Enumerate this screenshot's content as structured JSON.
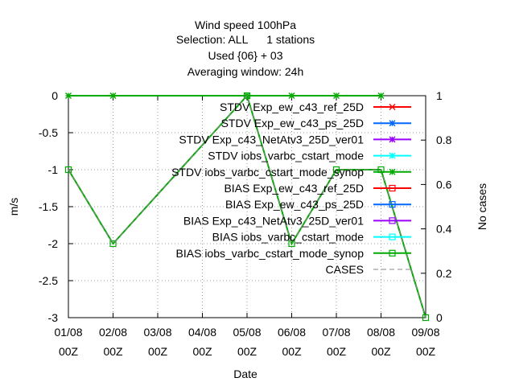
{
  "chart_data": {
    "type": "line",
    "title": [
      "Wind speed 100hPa",
      "Selection: ALL      1 stations",
      "Used {06} + 03",
      "Averaging window: 24h"
    ],
    "xlabel": "Date",
    "ylabel": "m/s",
    "y2label": "No cases",
    "x_ticks": [
      [
        "01/08",
        "00Z"
      ],
      [
        "02/08",
        "00Z"
      ],
      [
        "03/08",
        "00Z"
      ],
      [
        "04/08",
        "00Z"
      ],
      [
        "05/08",
        "00Z"
      ],
      [
        "06/08",
        "00Z"
      ],
      [
        "07/08",
        "00Z"
      ],
      [
        "08/08",
        "00Z"
      ],
      [
        "09/08",
        "00Z"
      ]
    ],
    "y_ticks": [
      "0",
      "-0.5",
      "-1",
      "-1.5",
      "-2",
      "-2.5",
      "-3"
    ],
    "y2_ticks": [
      "1",
      "0.8",
      "0.6",
      "0.4",
      "0.2",
      "0"
    ],
    "ylim": [
      -3,
      0
    ],
    "y2lim": [
      0,
      1
    ],
    "grid": true,
    "legend_position": "top-right",
    "series": [
      {
        "name": "STDV Exp_ew_c43_ref_25D",
        "color": "#ff0000",
        "marker": "x",
        "x": [],
        "y": []
      },
      {
        "name": "STDV Exp_ew_c43_ps_25D",
        "color": "#0066ff",
        "marker": "star",
        "x": [],
        "y": []
      },
      {
        "name": "STDV Exp_c43_NetAtv3_25D_ver01",
        "color": "#9900ff",
        "marker": "star",
        "x": [],
        "y": []
      },
      {
        "name": "STDV iobs_varbc_cstart_mode",
        "color": "#00ffff",
        "marker": "star",
        "x": [],
        "y": []
      },
      {
        "name": "STDV iobs_varbc_cstart_mode_synop",
        "color": "#00aa00",
        "marker": "star",
        "x": [
          0,
          1,
          4,
          5,
          6,
          7
        ],
        "y": [
          0,
          0,
          0,
          0,
          0,
          0
        ]
      },
      {
        "name": "BIAS Exp_ew_c43_ref_25D",
        "color": "#ff0000",
        "marker": "square",
        "x": [],
        "y": []
      },
      {
        "name": "BIAS Exp_ew_c43_ps_25D",
        "color": "#0066ff",
        "marker": "square",
        "x": [],
        "y": []
      },
      {
        "name": "BIAS Exp_c43_NetAtv3_25D_ver01",
        "color": "#9900ff",
        "marker": "square",
        "x": [],
        "y": []
      },
      {
        "name": "BIAS iobs_varbc_cstart_mode",
        "color": "#00ffff",
        "marker": "square",
        "x": [],
        "y": []
      },
      {
        "name": "BIAS iobs_varbc_cstart_mode_synop",
        "color": "#00aa00",
        "marker": "square",
        "x": [
          0,
          1,
          4,
          5,
          6,
          7,
          8
        ],
        "y": [
          -1,
          -2,
          0,
          -2,
          -1,
          -1,
          -3
        ]
      },
      {
        "name": "CASES",
        "color": "#888888",
        "marker": "none",
        "dashed": true,
        "axis": "y2",
        "x": [
          0,
          1,
          4,
          5,
          6,
          7,
          8
        ],
        "y": [
          0.667,
          0.333,
          1,
          0.333,
          0.667,
          0.667,
          0
        ]
      }
    ]
  }
}
